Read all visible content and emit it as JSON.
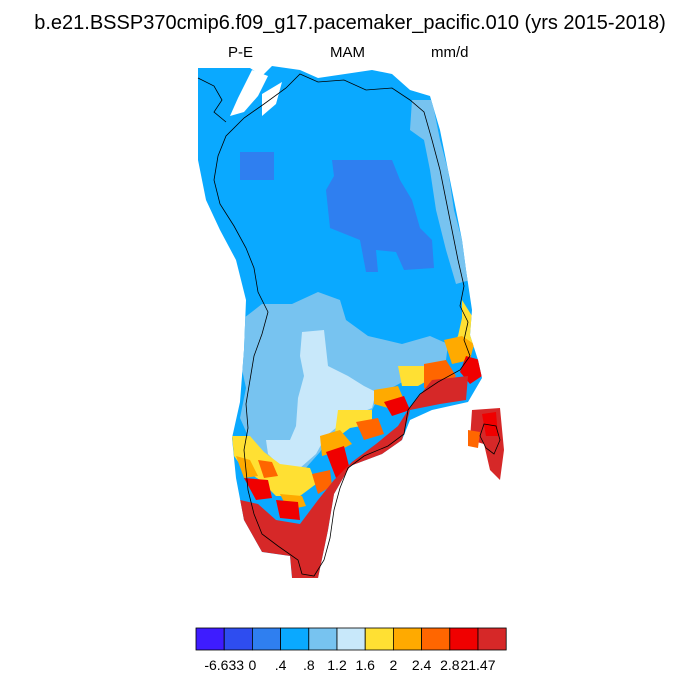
{
  "chart_data": {
    "type": "heatmap",
    "title": "b.e21.BSSP370cmip6.f09_g17.pacemaker_pacific.010 (yrs 2015-2018)",
    "left_label": "P-E",
    "center_label": "MAM",
    "right_label": "mm/d",
    "region": "Greenland",
    "colorbar": {
      "orientation": "horizontal",
      "placement": "bottom",
      "tick_labels": [
        "-6.633",
        "0",
        ".4",
        ".8",
        "1.2",
        "1.6",
        "2",
        "2.4",
        "2.8",
        "21.47"
      ],
      "boundaries": [
        -6.633,
        -0.2,
        0,
        0.4,
        0.8,
        1.2,
        1.6,
        2,
        2.4,
        2.8,
        3.2,
        21.47
      ],
      "colors": [
        "#3e1cff",
        "#2e4df0",
        "#2f7ff0",
        "#0aa9ff",
        "#77c3f0",
        "#c8e8fa",
        "#ffe033",
        "#ffaa00",
        "#ff6600",
        "#f00000",
        "#d62828"
      ]
    }
  }
}
